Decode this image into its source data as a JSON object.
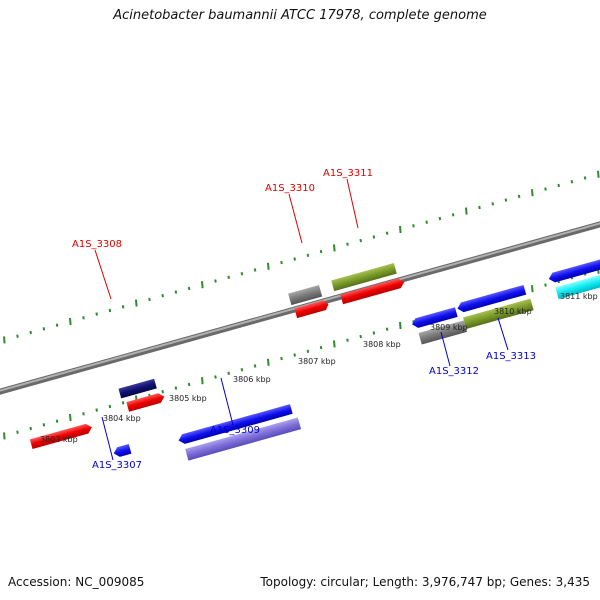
{
  "title": "Acinetobacter baumannii ATCC 17978, complete genome",
  "footer": {
    "accession": "Accession: NC_009085",
    "summary": "Topology: circular; Length: 3,976,747 bp; Genes: 3,435"
  },
  "colors": {
    "backbone": "#8c8c8c",
    "tick_dots": "#2e8b2e",
    "forward_label": "#dd0000",
    "reverse_label": "#0000cc"
  },
  "kbp_ticks": [
    {
      "label": "3803 kbp"
    },
    {
      "label": "3804 kbp"
    },
    {
      "label": "3805 kbp"
    },
    {
      "label": "3806 kbp"
    },
    {
      "label": "3807 kbp"
    },
    {
      "label": "3808 kbp"
    },
    {
      "label": "3809 kbp"
    },
    {
      "label": "3810 kbp"
    },
    {
      "label": "3811 kbp"
    }
  ],
  "gene_labels": [
    {
      "text": "A1S_3308",
      "strand": "forward"
    },
    {
      "text": "A1S_3310",
      "strand": "forward"
    },
    {
      "text": "A1S_3311",
      "strand": "forward"
    },
    {
      "text": "A1S_3307",
      "strand": "reverse"
    },
    {
      "text": "A1S_3309",
      "strand": "reverse"
    },
    {
      "text": "A1S_3312",
      "strand": "reverse"
    },
    {
      "text": "A1S_3313",
      "strand": "reverse"
    }
  ]
}
